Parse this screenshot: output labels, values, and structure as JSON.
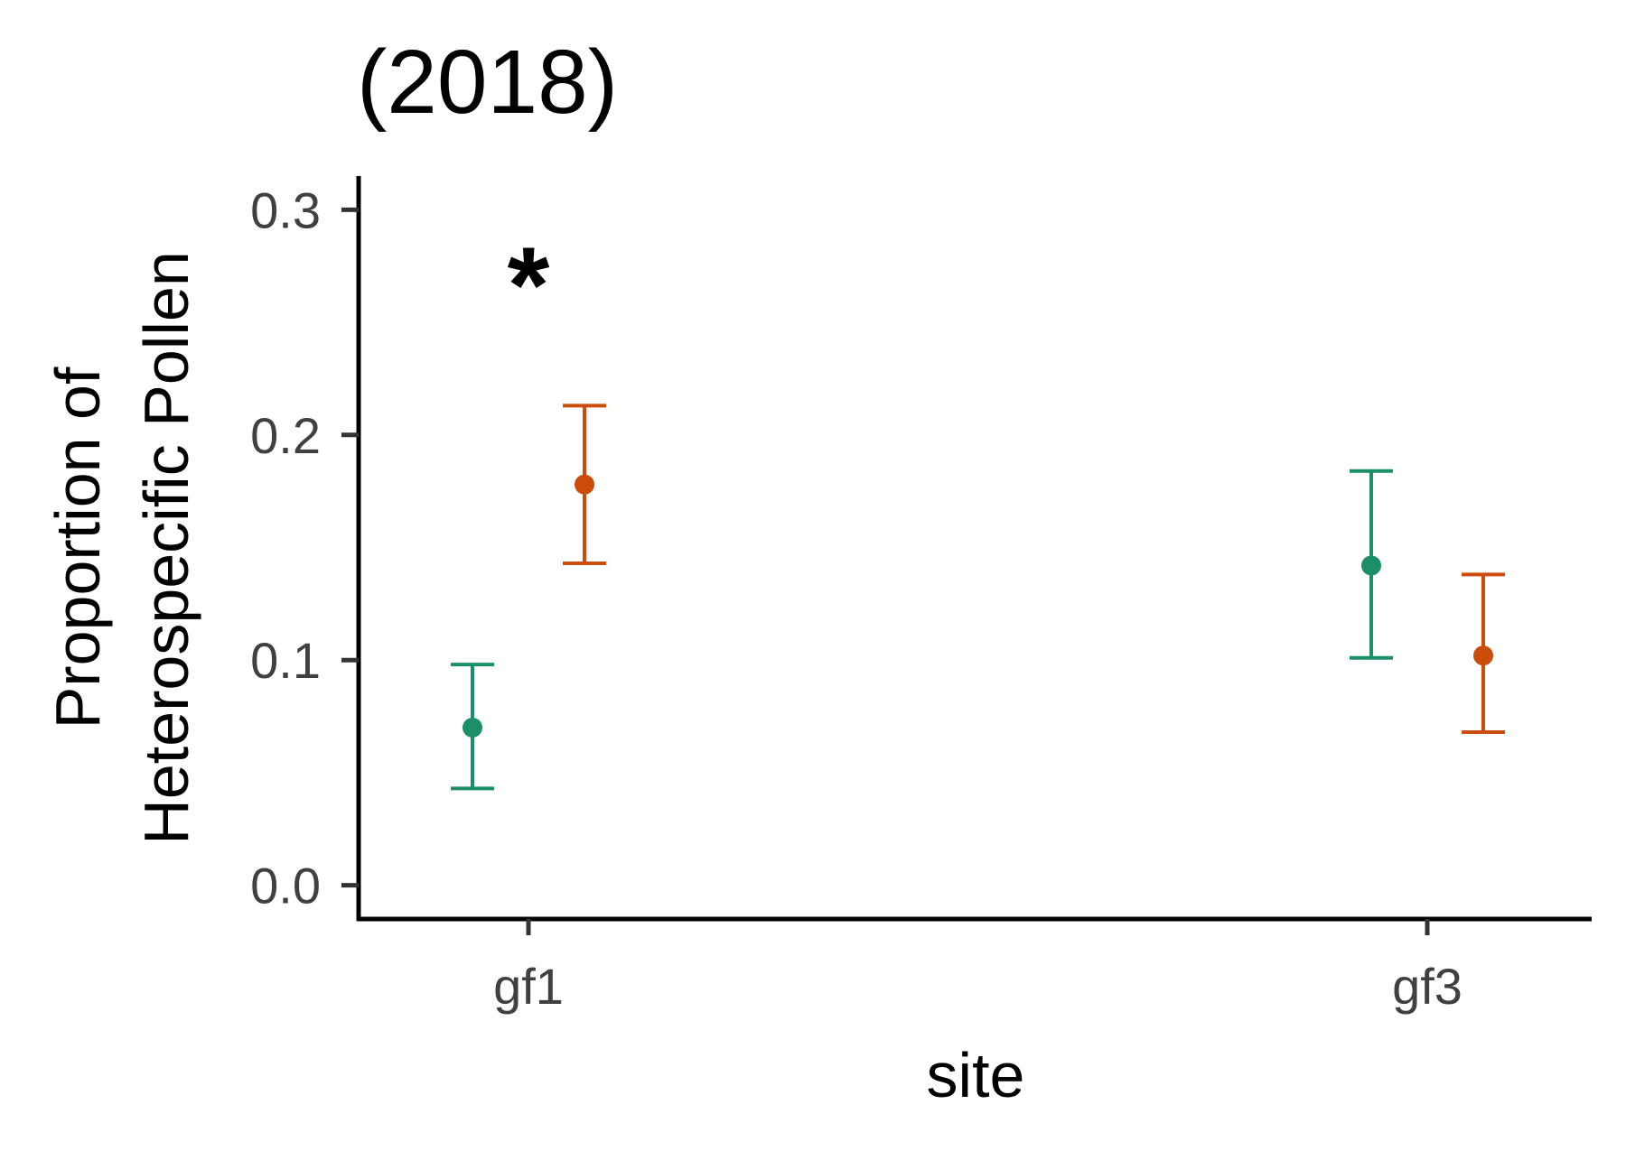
{
  "chart_data": {
    "type": "scatter",
    "title": "(2018)",
    "xlabel": "site",
    "ylabel_lines": [
      "Proportion of",
      "Heterospecific Pollen"
    ],
    "categories": [
      "gf1",
      "gf3"
    ],
    "ylim": [
      -0.015,
      0.315
    ],
    "yticks": [
      0.0,
      0.1,
      0.2,
      0.3
    ],
    "ytick_labels": [
      "0.0",
      "0.1",
      "0.2",
      "0.3"
    ],
    "grid": false,
    "legend": "none",
    "series": [
      {
        "color": "#1b8f66",
        "points": [
          {
            "category": "gf1",
            "y": 0.07,
            "lower": 0.043,
            "upper": 0.098
          },
          {
            "category": "gf3",
            "y": 0.142,
            "lower": 0.101,
            "upper": 0.184
          }
        ]
      },
      {
        "color": "#cc4c0a",
        "points": [
          {
            "category": "gf1",
            "y": 0.178,
            "lower": 0.143,
            "upper": 0.213
          },
          {
            "category": "gf3",
            "y": 0.102,
            "lower": 0.068,
            "upper": 0.138
          }
        ]
      }
    ],
    "annotations": [
      {
        "text": "*",
        "category": "gf1",
        "y": 0.272
      }
    ]
  }
}
